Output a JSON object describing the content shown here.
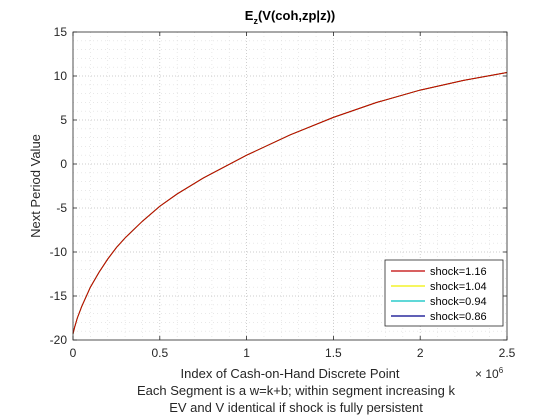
{
  "chart_data": {
    "type": "line",
    "title": {
      "main": "E",
      "sub": "z",
      "rest": "(V(coh,zp|z))"
    },
    "xlabel": "Index of Cash-on-Hand Discrete Point",
    "xlabel_line2": "Each Segment is a w=k+b; within segment increasing k",
    "xlabel_line3": "EV and V identical if shock is fully persistent",
    "ylabel": "Next Period Value",
    "x_exponent": {
      "base": "× 10",
      "power": "6"
    },
    "xlim": [
      0,
      2.5
    ],
    "ylim": [
      -20,
      15
    ],
    "xticks": [
      0,
      0.5,
      1,
      1.5,
      2,
      2.5
    ],
    "xtick_labels": [
      "0",
      "0.5",
      "1",
      "1.5",
      "2",
      "2.5"
    ],
    "yticks": [
      -20,
      -15,
      -10,
      -5,
      0,
      5,
      10,
      15
    ],
    "ytick_labels": [
      "-20",
      "-15",
      "-10",
      "-5",
      "0",
      "5",
      "10",
      "15"
    ],
    "grid": "major-and-minor-dotted",
    "legend_position": "bottom-right",
    "series": [
      {
        "name": "shock=1.16",
        "color": "#c00000"
      },
      {
        "name": "shock=1.04",
        "color": "#f0f000"
      },
      {
        "name": "shock=0.94",
        "color": "#00c0c0"
      },
      {
        "name": "shock=0.86",
        "color": "#00008b"
      }
    ],
    "x": [
      0,
      0.01,
      0.025,
      0.05,
      0.1,
      0.15,
      0.2,
      0.25,
      0.3,
      0.4,
      0.5,
      0.6,
      0.75,
      1.0,
      1.25,
      1.5,
      1.75,
      2.0,
      2.25,
      2.5
    ],
    "y": [
      -19.3,
      -18.5,
      -17.5,
      -16.2,
      -14.0,
      -12.3,
      -10.8,
      -9.5,
      -8.4,
      -6.5,
      -4.8,
      -3.4,
      -1.6,
      1.0,
      3.3,
      5.3,
      7.0,
      8.4,
      9.5,
      10.4
    ]
  }
}
